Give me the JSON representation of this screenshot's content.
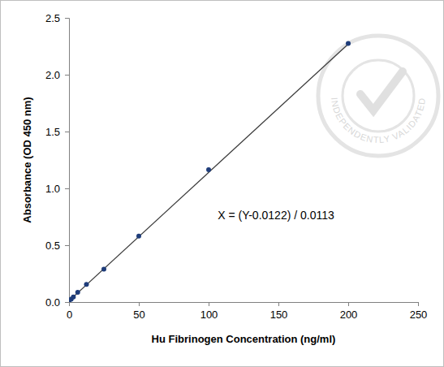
{
  "chart_data": {
    "type": "scatter",
    "x_label": "Hu Fibrinogen Concentration (ng/ml)",
    "y_label": "Absorbance (OD 450 nm)",
    "annotations": [
      "X = (Y-0.0122) / 0.0113",
      "INDEPENDENTLY VALIDATED"
    ],
    "series": [
      {
        "type": "scatter",
        "marker": "circle",
        "color": "#1f3d7a",
        "x": [
          0,
          1.56,
          3.13,
          6.25,
          12.5,
          25,
          50,
          100,
          200
        ],
        "values": [
          0.005,
          0.025,
          0.045,
          0.085,
          0.155,
          0.29,
          0.58,
          1.165,
          2.275
        ]
      },
      {
        "type": "line",
        "line_style": "solid",
        "color": "#3a3a3a",
        "x": [
          0,
          200
        ],
        "values": [
          0.01,
          2.27
        ]
      }
    ],
    "xlim": [
      0,
      250
    ],
    "xticks": [
      0,
      50,
      100,
      150,
      200,
      250
    ],
    "ylim": [
      0,
      2.5
    ],
    "yticks": [
      {
        "value": 0,
        "label": "0.0"
      },
      {
        "value": 0.5,
        "label": "0.5"
      },
      {
        "value": 1,
        "label": "1.0"
      },
      {
        "value": 1.5,
        "label": "1.5"
      },
      {
        "value": 2,
        "label": "2.0"
      },
      {
        "value": 2.5,
        "label": "2.5"
      }
    ],
    "grid": false
  }
}
